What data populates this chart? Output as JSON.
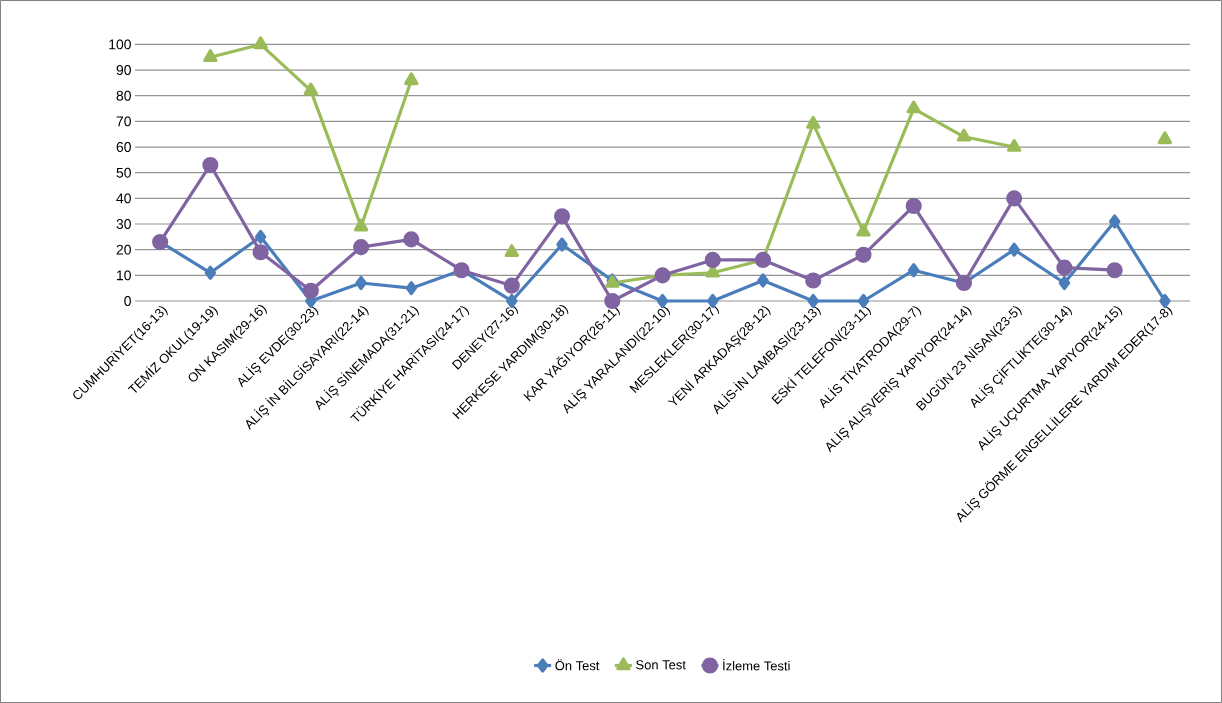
{
  "chart_data": {
    "type": "line",
    "categories": [
      "CUMHURİYET(16-13)",
      "TEMİZ OKUL(19-19)",
      "ON KASIM(29-16)",
      "ALİŞ EVDE(30-23)",
      "ALİŞ İN BİLGİSAYARI(22-14)",
      "ALİŞ SİNEMADA(31-21)",
      "TÜRKİYE HARİTASI(24-17)",
      "DENEY(27-16)",
      "HERKESE YARDIM(30-18)",
      "KAR YAĞIYOR(26-11)",
      "ALİŞ YARALANDI(22-10)",
      "MESLEKLER(30-17)",
      "YENİ ARKADAŞ(28-12)",
      "ALİS-İN LAMBASI(23-13)",
      "ESKİ TELEFON(23-11)",
      "ALİS TİYATRODA(29-7)",
      "ALİŞ ALIŞVERİŞ YAPIYOR(24-14)",
      "BUGÜN 23 NİSAN(23-5)",
      "ALİŞ ÇİFTLİKTE(30-14)",
      "ALİŞ UÇURTMA YAPIYOR(24-15)",
      "ALİŞ GÖRME ENGELLİLERE YARDIM EDER(17-8)"
    ],
    "series": [
      {
        "name": "Ön Test",
        "color": "#4a7ebb",
        "marker": "diamond",
        "values": [
          23,
          11,
          25,
          0,
          7,
          5,
          12,
          0,
          22,
          8,
          0,
          0,
          8,
          0,
          0,
          12,
          7,
          20,
          7,
          31,
          0
        ]
      },
      {
        "name": "Son Test",
        "color": "#9bbb59",
        "marker": "triangle",
        "values": [
          null,
          95,
          100,
          82,
          29,
          86,
          null,
          19,
          null,
          7,
          10,
          11,
          16,
          69,
          27,
          75,
          64,
          60,
          null,
          null,
          63
        ]
      },
      {
        "name": "İzleme Testi",
        "color": "#8064a2",
        "marker": "circle",
        "values": [
          23,
          53,
          19,
          4,
          21,
          24,
          12,
          6,
          33,
          0,
          10,
          16,
          16,
          8,
          18,
          37,
          7,
          40,
          13,
          12,
          null
        ]
      }
    ],
    "ylim": [
      0,
      100
    ],
    "yticks": [
      0,
      10,
      20,
      30,
      40,
      50,
      60,
      70,
      80,
      90,
      100
    ],
    "grid": "y",
    "legend": "bottom",
    "line_style": "solid"
  }
}
